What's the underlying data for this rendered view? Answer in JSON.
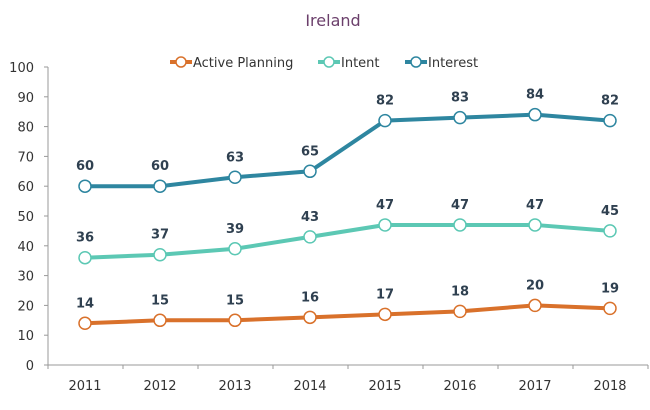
{
  "chart_data": {
    "type": "line",
    "title": "Ireland",
    "xlabel": "",
    "ylabel": "",
    "categories": [
      "2011",
      "2012",
      "2013",
      "2014",
      "2015",
      "2016",
      "2017",
      "2018"
    ],
    "ylim": [
      0,
      100
    ],
    "yticks": [
      0,
      10,
      20,
      30,
      40,
      50,
      60,
      70,
      80,
      90,
      100
    ],
    "grid": false,
    "legend": "top",
    "series": [
      {
        "name": "Active Planning",
        "color": "#d9712b",
        "values": [
          14,
          15,
          15,
          16,
          17,
          18,
          20,
          19
        ]
      },
      {
        "name": "Intent",
        "color": "#5cc8b4",
        "values": [
          36,
          37,
          39,
          43,
          47,
          47,
          47,
          45
        ]
      },
      {
        "name": "Interest",
        "color": "#2e86a0",
        "values": [
          60,
          60,
          63,
          65,
          82,
          83,
          84,
          82
        ]
      }
    ]
  }
}
